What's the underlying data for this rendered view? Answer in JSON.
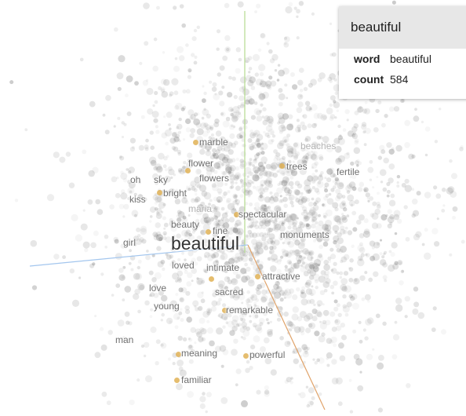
{
  "focus_word": "beautiful",
  "colors": {
    "x_axis": "#e0a36a",
    "y_axis": "#b3da8f",
    "z_axis": "#a3c6ee",
    "highlight_point": "#e0b255"
  },
  "info_card": {
    "title": "beautiful",
    "rows": [
      {
        "key": "word",
        "value": "beautiful"
      },
      {
        "key": "count",
        "value": "584"
      }
    ]
  },
  "neighbors": [
    {
      "label": "marble"
    },
    {
      "label": "beaches"
    },
    {
      "label": "flower"
    },
    {
      "label": "trees"
    },
    {
      "label": "fertile"
    },
    {
      "label": "oh"
    },
    {
      "label": "sky"
    },
    {
      "label": "flowers"
    },
    {
      "label": "bright"
    },
    {
      "label": "kiss"
    },
    {
      "label": "maria"
    },
    {
      "label": "spectacular"
    },
    {
      "label": "beauty"
    },
    {
      "label": "fine"
    },
    {
      "label": "monuments"
    },
    {
      "label": "girl"
    },
    {
      "label": "loved"
    },
    {
      "label": "intimate"
    },
    {
      "label": "attractive"
    },
    {
      "label": "love"
    },
    {
      "label": "sacred"
    },
    {
      "label": "young"
    },
    {
      "label": "remarkable"
    },
    {
      "label": "man"
    },
    {
      "label": "meaning"
    },
    {
      "label": "powerful"
    },
    {
      "label": "familiar"
    }
  ]
}
